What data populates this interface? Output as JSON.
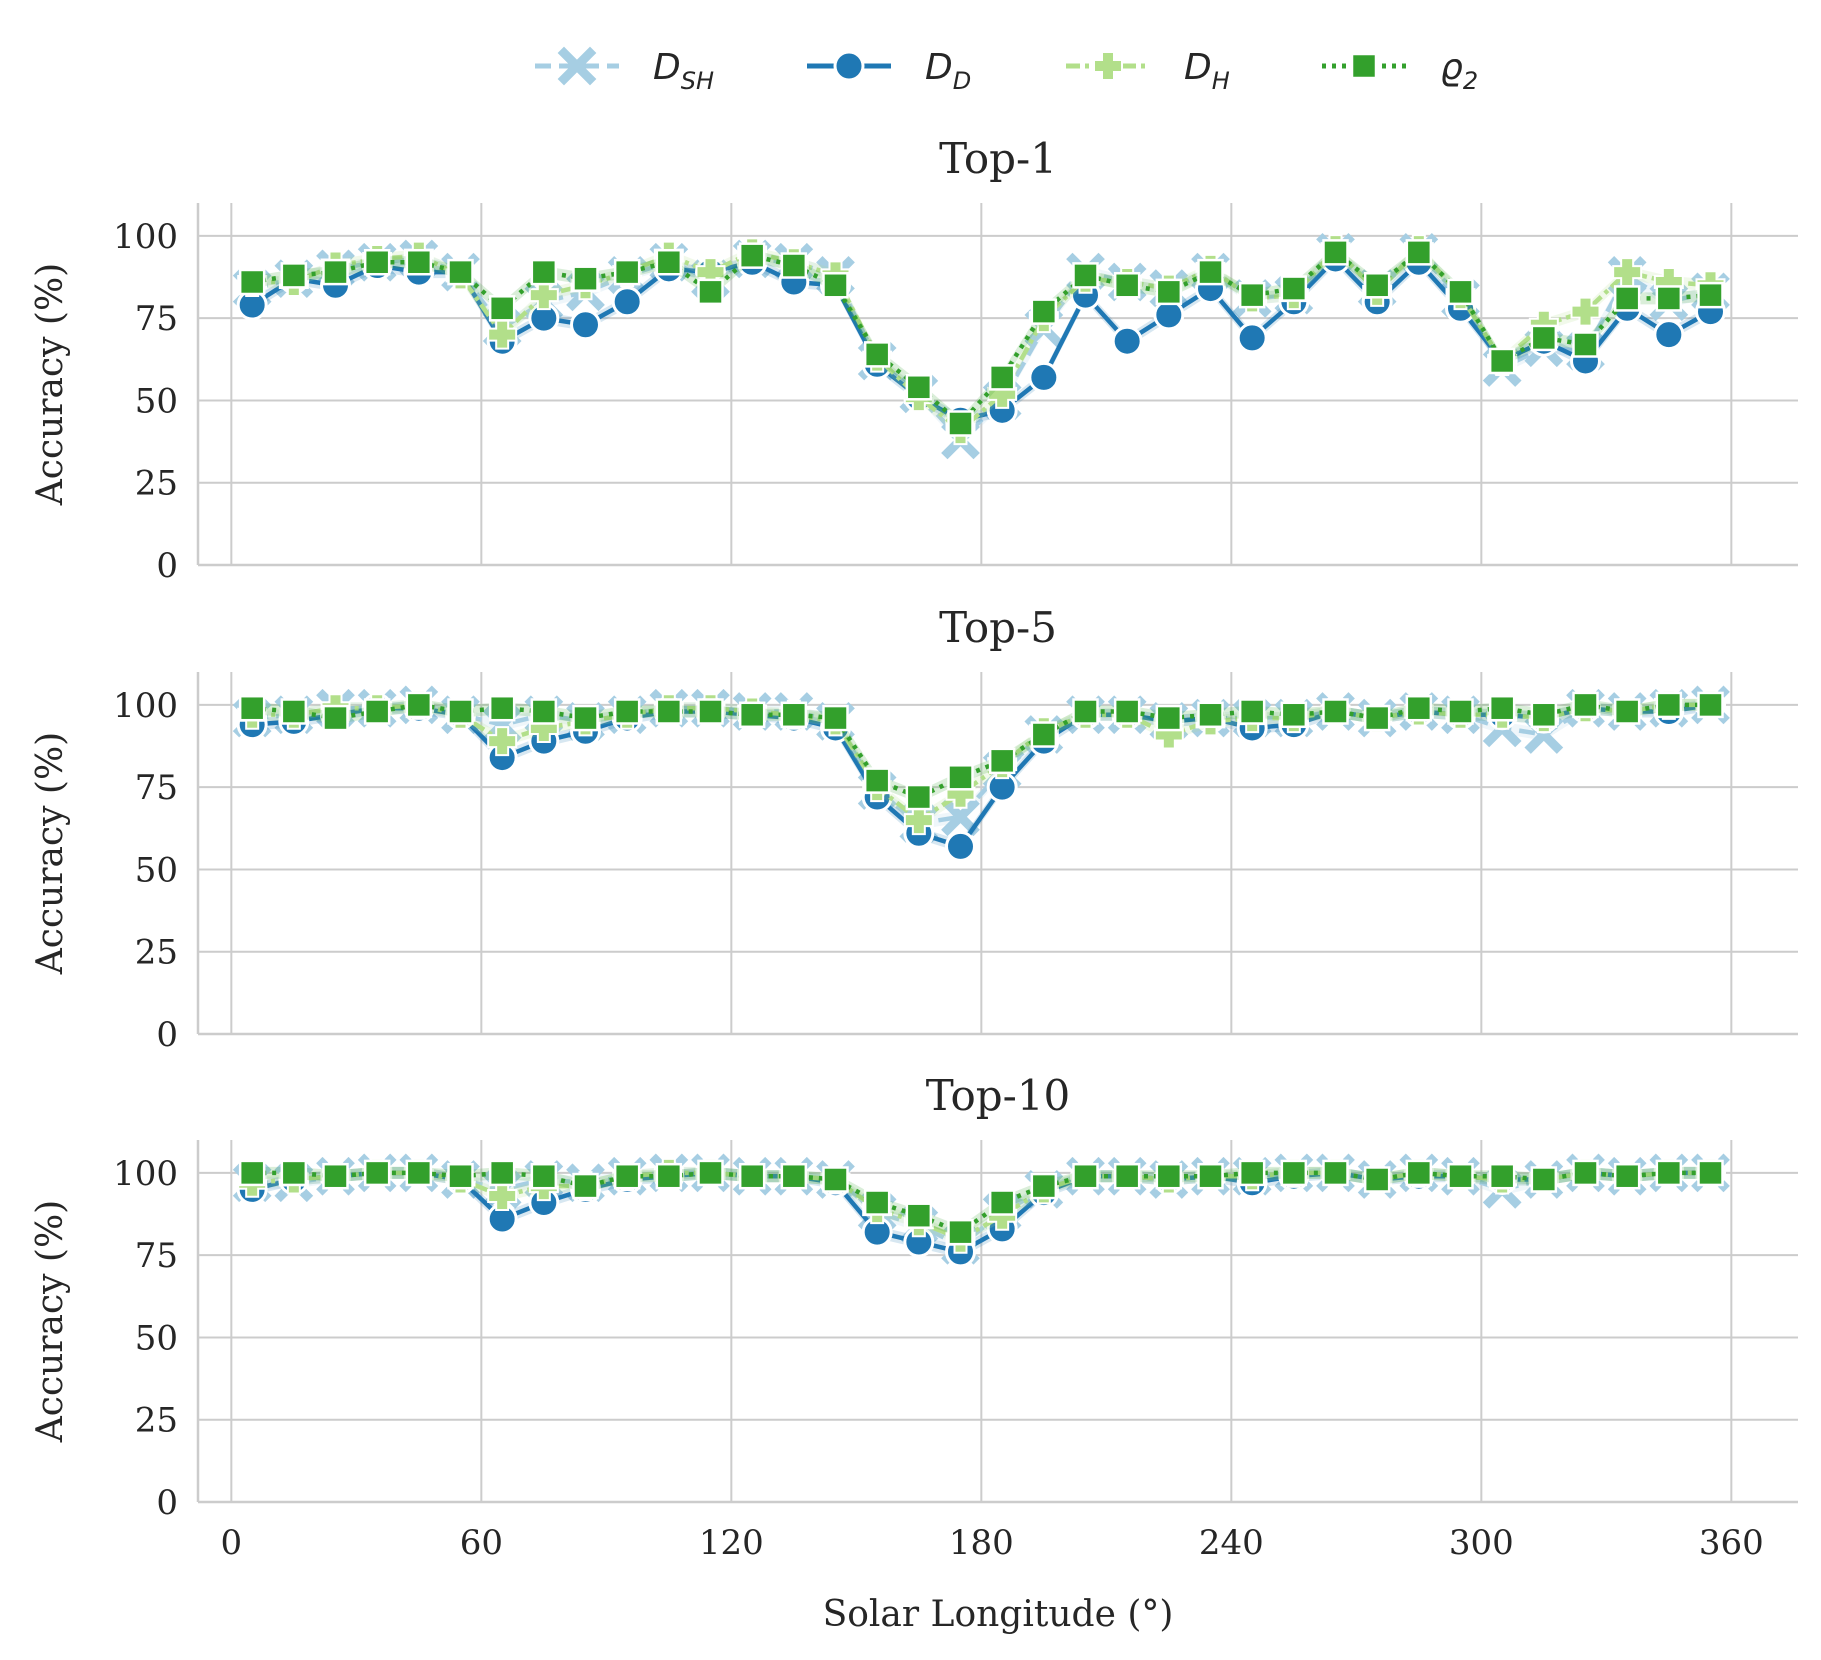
{
  "chart_data": {
    "type": "line",
    "xlabel": "Solar Longitude (°)",
    "ylabel": "Accuracy (%)",
    "xlim": [
      -8,
      376
    ],
    "ylim": [
      0,
      110
    ],
    "x_ticks": [
      0,
      60,
      120,
      180,
      240,
      300,
      360
    ],
    "y_ticks": [
      0,
      25,
      50,
      75,
      100
    ],
    "grid": true,
    "legend_position": "top-center",
    "x": [
      5,
      15,
      25,
      35,
      45,
      55,
      65,
      75,
      85,
      95,
      105,
      115,
      125,
      135,
      145,
      155,
      165,
      175,
      185,
      195,
      205,
      215,
      225,
      235,
      245,
      255,
      265,
      275,
      285,
      295,
      305,
      315,
      325,
      335,
      345,
      355
    ],
    "legend": [
      {
        "key": "D_SH",
        "main": "D",
        "sub": "SH",
        "color": "#a6cee3",
        "dash": "16,8",
        "marker": "x"
      },
      {
        "key": "D_D",
        "main": "D",
        "sub": "D",
        "color": "#1f78b4",
        "dash": "",
        "marker": "circle"
      },
      {
        "key": "D_H",
        "main": "D",
        "sub": "H",
        "color": "#b2df8a",
        "dash": "14,5,4,5",
        "marker": "plus"
      },
      {
        "key": "rho_2",
        "main": "ϱ",
        "sub": "2",
        "color": "#33a02c",
        "dash": "4,6",
        "marker": "square"
      }
    ],
    "panels": [
      {
        "title": "Top-1",
        "series": [
          {
            "name": "D_SH",
            "values": [
              84,
              87,
              90,
              92,
              93,
              89,
              72,
              80,
              83,
              88,
              92,
              87,
              93,
              92,
              88,
              62,
              52,
              38,
              50,
              72,
              89,
              86,
              84,
              89,
              81,
              82,
              95,
              84,
              95,
              81,
              60,
              66,
              65,
              88,
              80,
              83
            ]
          },
          {
            "name": "D_D",
            "values": [
              79,
              87,
              85,
              91,
              89,
              89,
              68,
              75,
              73,
              80,
              90,
              89,
              92,
              86,
              85,
              61,
              51,
              44,
              47,
              57,
              82,
              68,
              76,
              84,
              69,
              80,
              93,
              80,
              92,
              78,
              62,
              68,
              62,
              78,
              70,
              77
            ]
          },
          {
            "name": "D_H",
            "values": [
              86,
              86,
              91,
              93,
              94,
              88,
              70,
              82,
              85,
              89,
              94,
              89,
              95,
              92,
              88,
              63,
              51,
              41,
              52,
              75,
              87,
              86,
              84,
              90,
              81,
              82,
              96,
              83,
              96,
              82,
              62,
              73,
              77,
              89,
              86,
              85
            ]
          },
          {
            "name": "rho_2",
            "values": [
              86,
              88,
              89,
              92,
              92,
              89,
              78,
              89,
              87,
              89,
              92,
              83,
              94,
              91,
              85,
              64,
              54,
              43,
              57,
              77,
              88,
              85,
              83,
              89,
              82,
              84,
              95,
              85,
              95,
              83,
              62,
              69,
              67,
              81,
              81,
              82
            ]
          }
        ]
      },
      {
        "title": "Top-5",
        "series": [
          {
            "name": "D_SH",
            "values": [
              96,
              97,
              99,
              99,
              100,
              97,
              94,
              97,
              95,
              97,
              99,
              99,
              98,
              98,
              95,
              74,
              64,
              66,
              80,
              91,
              97,
              97,
              95,
              96,
              96,
              96,
              98,
              96,
              98,
              97,
              93,
              91,
              99,
              98,
              99,
              100
            ]
          },
          {
            "name": "D_D",
            "values": [
              94,
              95,
              97,
              99,
              99,
              97,
              84,
              89,
              92,
              96,
              98,
              98,
              97,
              96,
              93,
              72,
              61,
              57,
              75,
              89,
              97,
              97,
              95,
              96,
              93,
              94,
              98,
              96,
              98,
              97,
              97,
              96,
              99,
              98,
              98,
              100
            ]
          },
          {
            "name": "D_H",
            "values": [
              97,
              97,
              99,
              99,
              100,
              97,
              89,
              93,
              95,
              97,
              99,
              99,
              98,
              97,
              95,
              75,
              65,
              73,
              82,
              92,
              97,
              97,
              91,
              95,
              96,
              96,
              98,
              96,
              98,
              97,
              97,
              96,
              99,
              98,
              100,
              100
            ]
          },
          {
            "name": "rho_2",
            "values": [
              99,
              98,
              96,
              98,
              100,
              98,
              99,
              98,
              96,
              98,
              98,
              98,
              97,
              97,
              96,
              77,
              72,
              78,
              83,
              91,
              98,
              98,
              96,
              97,
              98,
              97,
              98,
              96,
              99,
              98,
              99,
              97,
              100,
              98,
              100,
              100
            ]
          }
        ]
      },
      {
        "title": "Top-10",
        "series": [
          {
            "name": "D_SH",
            "values": [
              97,
              97,
              99,
              100,
              100,
              98,
              95,
              98,
              97,
              99,
              100,
              100,
              99,
              99,
              98,
              88,
              84,
              78,
              88,
              95,
              99,
              99,
              98,
              99,
              99,
              100,
              100,
              98,
              100,
              99,
              95,
              98,
              100,
              99,
              100,
              100
            ]
          },
          {
            "name": "D_D",
            "values": [
              95,
              98,
              99,
              100,
              100,
              98,
              86,
              91,
              95,
              98,
              99,
              100,
              99,
              99,
              97,
              82,
              79,
              76,
              83,
              94,
              99,
              99,
              98,
              99,
              97,
              99,
              100,
              98,
              99,
              99,
              98,
              98,
              100,
              99,
              100,
              100
            ]
          },
          {
            "name": "D_H",
            "values": [
              97,
              98,
              99,
              100,
              100,
              98,
              93,
              96,
              96,
              99,
              100,
              100,
              99,
              99,
              98,
              89,
              85,
              80,
              87,
              95,
              99,
              99,
              98,
              99,
              99,
              100,
              100,
              98,
              100,
              99,
              98,
              98,
              100,
              99,
              100,
              100
            ]
          },
          {
            "name": "rho_2",
            "values": [
              100,
              100,
              99,
              100,
              100,
              99,
              100,
              99,
              96,
              99,
              99,
              100,
              99,
              99,
              98,
              91,
              87,
              82,
              91,
              96,
              99,
              99,
              99,
              99,
              100,
              100,
              100,
              98,
              100,
              99,
              99,
              98,
              100,
              99,
              100,
              100
            ]
          }
        ]
      }
    ]
  }
}
